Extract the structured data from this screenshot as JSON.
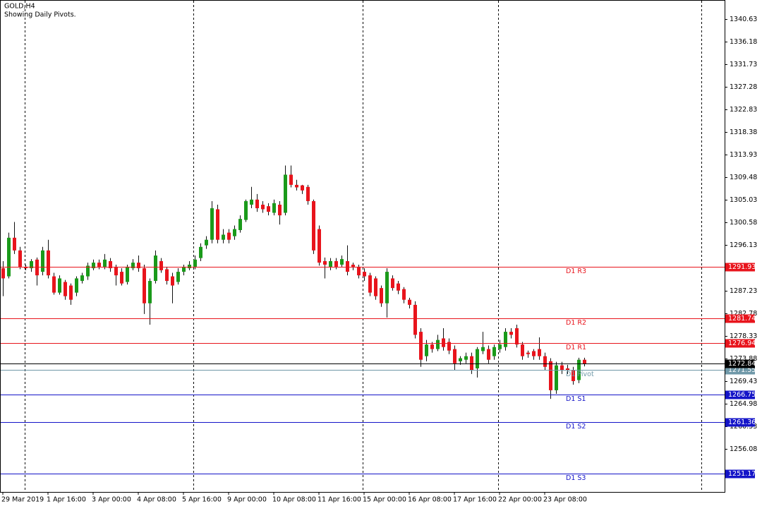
{
  "chart_data": {
    "type": "candlestick",
    "title": "GOLD,H4",
    "subtitle": "Showing Daily Pivots.",
    "categories": [
      "29 Mar 2019",
      null,
      null,
      null,
      null,
      null,
      null,
      null,
      "1 Apr 16:00",
      null,
      null,
      null,
      null,
      null,
      null,
      null,
      "3 Apr 00:00",
      null,
      null,
      null,
      null,
      null,
      null,
      null,
      "4 Apr 08:00",
      null,
      null,
      null,
      null,
      null,
      null,
      null,
      "5 Apr 16:00",
      null,
      null,
      null,
      null,
      null,
      null,
      null,
      "9 Apr 00:00",
      null,
      null,
      null,
      null,
      null,
      null,
      null,
      "10 Apr 08:00",
      null,
      null,
      null,
      null,
      null,
      null,
      null,
      "11 Apr 16:00",
      null,
      null,
      null,
      null,
      null,
      null,
      null,
      "15 Apr 00:00",
      null,
      null,
      null,
      null,
      null,
      null,
      null,
      "16 Apr 08:00",
      null,
      null,
      null,
      null,
      null,
      null,
      null,
      "17 Apr 16:00",
      null,
      null,
      null,
      null,
      null,
      null,
      null,
      "22 Apr 00:00",
      null,
      null,
      null,
      null,
      null,
      null,
      null,
      "23 Apr 08:00",
      null,
      null,
      null,
      null,
      null,
      null,
      null
    ],
    "open": [
      1291.6,
      1290.0,
      1297.6,
      1295.1,
      1291.9,
      1291.6,
      1293.3,
      1290.9,
      1295.1,
      1290.0,
      1286.8,
      1288.9,
      1288.2,
      1286.8,
      1289.1,
      1290.0,
      1291.6,
      1292.7,
      1291.9,
      1293.0,
      1291.9,
      1290.9,
      1288.9,
      1291.6,
      1292.7,
      1291.6,
      1284.7,
      1289.1,
      1293.0,
      1291.4,
      1290.0,
      1288.9,
      1290.9,
      1291.6,
      1291.9,
      1293.6,
      1296.1,
      1297.2,
      1303.2,
      1297.2,
      1298.6,
      1297.9,
      1299.1,
      1301.1,
      1304.1,
      1305.1,
      1304.1,
      1303.8,
      1302.5,
      1304.1,
      1302.5,
      1310.0,
      1308.0,
      1307.9,
      1307.6,
      1304.8,
      1299.3,
      1293.0,
      1291.9,
      1293.0,
      1292.3,
      1293.0,
      1292.3,
      1291.9,
      1290.9,
      1290.2,
      1289.6,
      1287.7,
      1284.7,
      1289.6,
      1288.6,
      1287.5,
      1285.4,
      1284.4,
      1279.1,
      1274.3,
      1276.6,
      1275.7,
      1277.8,
      1277.1,
      1275.7,
      1273.3,
      1273.6,
      1274.3,
      1271.9,
      1275.3,
      1275.7,
      1274.3,
      1275.7,
      1276.1,
      1279.1,
      1279.8,
      1276.6,
      1275.0,
      1275.3,
      1275.7,
      1274.3,
      1273.3,
      1267.6,
      1272.5,
      1271.9,
      1271.5,
      1269.6,
      1273.6
    ],
    "high": [
      1293.0,
      1298.6,
      1300.7,
      1295.8,
      1292.3,
      1293.4,
      1293.7,
      1295.8,
      1297.2,
      1290.7,
      1290.2,
      1289.3,
      1288.6,
      1290.0,
      1290.7,
      1292.7,
      1293.3,
      1293.3,
      1294.4,
      1293.6,
      1292.3,
      1291.6,
      1292.3,
      1293.4,
      1294.1,
      1292.3,
      1289.6,
      1295.1,
      1293.6,
      1291.9,
      1290.7,
      1291.6,
      1292.3,
      1293.0,
      1294.1,
      1296.5,
      1297.9,
      1304.8,
      1304.1,
      1299.3,
      1299.3,
      1300.0,
      1302.0,
      1305.1,
      1307.6,
      1306.2,
      1304.8,
      1304.4,
      1305.1,
      1304.8,
      1311.8,
      1311.8,
      1309.0,
      1308.0,
      1308.0,
      1305.1,
      1300.0,
      1293.7,
      1293.6,
      1293.6,
      1294.1,
      1296.1,
      1292.7,
      1292.3,
      1291.6,
      1290.7,
      1290.0,
      1288.2,
      1291.6,
      1290.2,
      1289.1,
      1287.9,
      1285.8,
      1285.1,
      1279.8,
      1277.5,
      1277.1,
      1278.5,
      1279.8,
      1277.8,
      1276.4,
      1274.3,
      1275.0,
      1275.0,
      1276.1,
      1279.1,
      1276.4,
      1276.6,
      1277.5,
      1279.8,
      1279.8,
      1280.5,
      1277.1,
      1275.4,
      1275.7,
      1278.0,
      1275.0,
      1273.9,
      1273.2,
      1273.2,
      1272.6,
      1272.2,
      1274.0,
      1274.0
    ],
    "low": [
      1286.1,
      1289.6,
      1294.4,
      1291.4,
      1291.2,
      1290.9,
      1288.2,
      1290.2,
      1289.6,
      1286.4,
      1286.4,
      1285.4,
      1284.4,
      1286.1,
      1288.6,
      1289.3,
      1291.2,
      1291.4,
      1291.4,
      1290.9,
      1288.2,
      1288.2,
      1288.4,
      1291.2,
      1290.9,
      1282.6,
      1280.5,
      1288.6,
      1290.7,
      1288.4,
      1284.7,
      1288.4,
      1290.2,
      1291.2,
      1291.4,
      1293.0,
      1295.4,
      1296.5,
      1296.5,
      1296.5,
      1296.5,
      1297.2,
      1298.6,
      1300.7,
      1303.4,
      1302.7,
      1302.5,
      1302.0,
      1302.0,
      1300.2,
      1302.0,
      1307.5,
      1306.9,
      1306.2,
      1304.1,
      1294.4,
      1292.1,
      1289.6,
      1291.2,
      1291.4,
      1291.9,
      1290.2,
      1291.2,
      1289.6,
      1289.1,
      1286.1,
      1285.4,
      1284.0,
      1281.9,
      1287.2,
      1286.5,
      1284.7,
      1283.7,
      1277.8,
      1272.2,
      1273.3,
      1275.0,
      1275.3,
      1275.4,
      1274.7,
      1271.5,
      1272.6,
      1272.9,
      1270.8,
      1270.1,
      1274.7,
      1272.9,
      1273.6,
      1275.0,
      1275.4,
      1277.8,
      1276.0,
      1273.6,
      1274.0,
      1273.6,
      1273.6,
      1271.5,
      1265.9,
      1266.9,
      1270.8,
      1270.8,
      1268.7,
      1269.0,
      1272.3
    ],
    "close": [
      1289.6,
      1297.6,
      1295.1,
      1291.9,
      1291.6,
      1293.0,
      1290.2,
      1295.1,
      1290.2,
      1286.8,
      1289.6,
      1286.1,
      1285.4,
      1289.6,
      1290.2,
      1292.1,
      1292.7,
      1291.9,
      1293.3,
      1291.6,
      1290.2,
      1288.6,
      1291.9,
      1292.7,
      1291.6,
      1284.7,
      1289.1,
      1294.1,
      1291.2,
      1289.1,
      1288.2,
      1290.9,
      1291.9,
      1292.3,
      1293.3,
      1295.8,
      1297.2,
      1303.4,
      1297.2,
      1298.2,
      1297.2,
      1299.3,
      1301.3,
      1304.8,
      1305.1,
      1303.4,
      1303.2,
      1302.7,
      1304.4,
      1302.0,
      1310.0,
      1308.0,
      1307.5,
      1306.9,
      1304.8,
      1295.1,
      1292.7,
      1292.3,
      1293.0,
      1291.9,
      1293.4,
      1290.9,
      1291.9,
      1290.2,
      1290.0,
      1286.8,
      1286.1,
      1284.7,
      1290.9,
      1287.7,
      1287.2,
      1285.4,
      1284.4,
      1278.5,
      1273.6,
      1276.6,
      1275.7,
      1277.5,
      1276.1,
      1275.4,
      1272.9,
      1273.9,
      1274.3,
      1271.5,
      1275.7,
      1276.1,
      1273.6,
      1276.1,
      1276.6,
      1279.1,
      1278.5,
      1276.6,
      1274.3,
      1274.7,
      1274.3,
      1274.3,
      1272.2,
      1267.6,
      1272.5,
      1271.5,
      1271.5,
      1269.4,
      1273.6,
      1272.84
    ],
    "up_color": "#1a9a1a",
    "down_color": "#e8141c",
    "ylim": [
      1247.6,
      1343.8
    ],
    "yticks": [
      1340.63,
      1336.18,
      1331.73,
      1327.28,
      1322.83,
      1318.38,
      1313.93,
      1309.48,
      1305.03,
      1300.58,
      1296.13,
      1287.23,
      1282.78,
      1278.33,
      1273.88,
      1269.43,
      1264.98,
      1260.53,
      1256.08
    ],
    "levels": [
      {
        "name": "D1 R3",
        "value": 1291.93,
        "color": "#e8141c"
      },
      {
        "name": "D1 R2",
        "value": 1281.74,
        "color": "#e8141c"
      },
      {
        "name": "D1 R1",
        "value": 1276.94,
        "color": "#e8141c"
      },
      {
        "name": "D1 Pivot",
        "value": 1271.55,
        "color": "#6f98a8"
      },
      {
        "name": "D1 S1",
        "value": 1266.75,
        "color": "#1414c8"
      },
      {
        "name": "D1 S2",
        "value": 1261.36,
        "color": "#1414c8"
      },
      {
        "name": "D1 S3",
        "value": 1251.17,
        "color": "#1414c8"
      }
    ],
    "last_price": 1272.84
  }
}
